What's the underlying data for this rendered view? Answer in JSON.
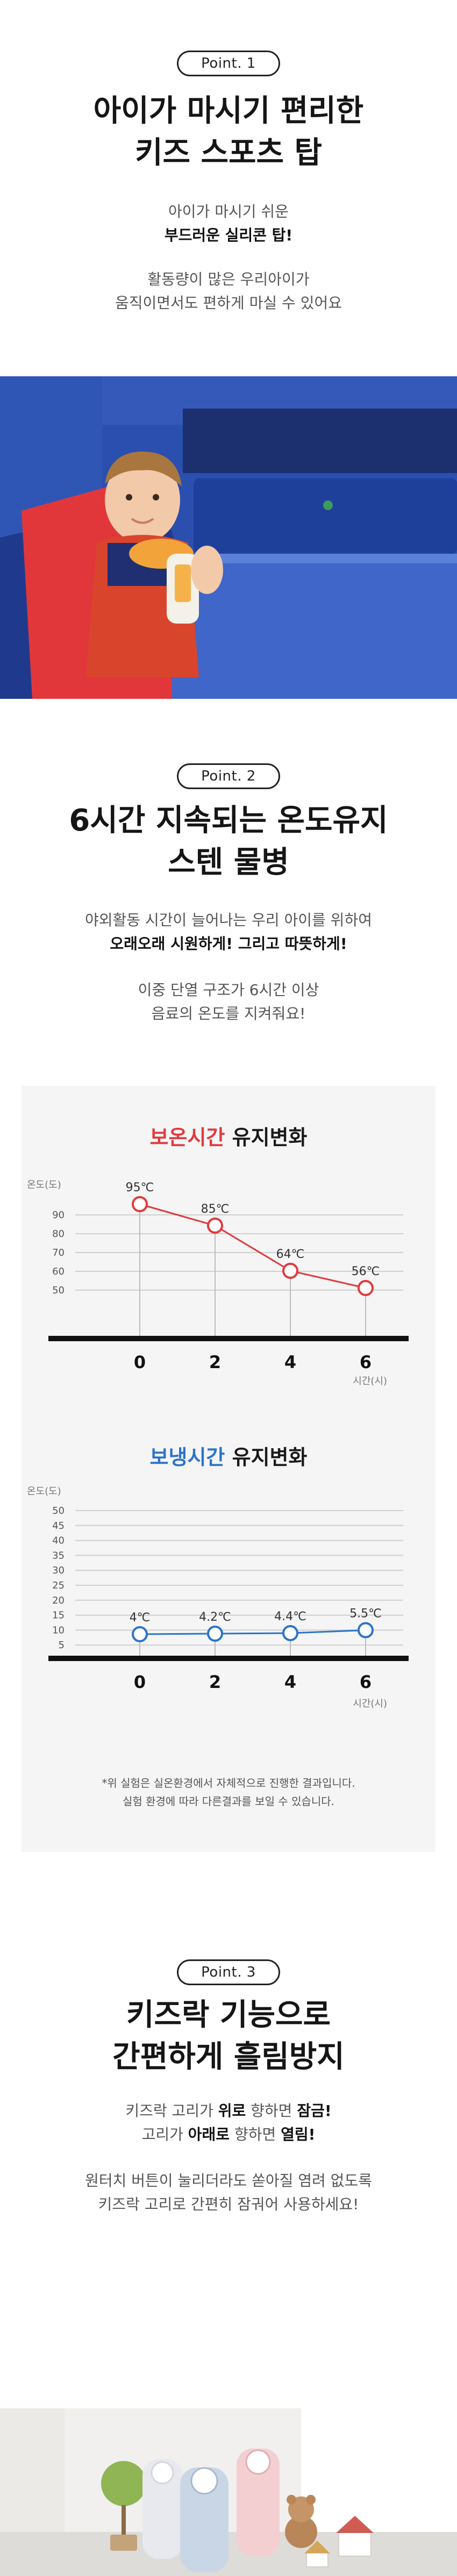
{
  "point1": {
    "badge": "Point. 1",
    "title_line1": "아이가 마시기 편리한",
    "title_line2": "키즈 스포츠 탑",
    "desc1_line1": "아이가 마시기 쉬운",
    "desc1_line2": "부드러운 실리콘 탑!",
    "desc2_line1": "활동량이 많은 우리아이가",
    "desc2_line2": "움직이면서도 편하게 마실 수 있어요"
  },
  "point2": {
    "badge": "Point. 2",
    "title_line1": "6시간 지속되는 온도유지",
    "title_line2": "스텐 물병",
    "desc1_line1": "야외활동 시간이 늘어나는 우리 아이를 위하여",
    "desc1_line2": "오래오래 시원하게! 그리고 따뜻하게!",
    "desc2_line1": "이중 단열 구조가 6시간 이상",
    "desc2_line2": "음료의 온도를 지켜줘요!",
    "note_line1": "*위 실험은 실온환경에서 자체적으로 진행한 결과입니다.",
    "note_line2": "실험 환경에 따라 다른결과를 보일 수 있습니다."
  },
  "point3": {
    "badge": "Point. 3",
    "title_line1": "키즈락 기능으로",
    "title_line2": "간편하게 흘림방지",
    "desc1_a": "키즈락 고리가 ",
    "desc1_b": "위로",
    "desc1_c": " 향하면 ",
    "desc1_d": "잠금!",
    "desc2_a": "고리가 ",
    "desc2_b": "아래로",
    "desc2_c": " 향하면 ",
    "desc2_d": "열림!",
    "desc3_line1": "원터치 버튼이 눌리더라도 쏟아질 염려 없도록",
    "desc3_line2": "키즈락 고리로 간편히 잠궈어 사용하세요!"
  },
  "colors": {
    "warm": "#e03a3e",
    "cold": "#2b74cc"
  },
  "chart_data": [
    {
      "type": "line",
      "title_colored": "보온시간",
      "title_rest": " 유지변화",
      "ylabel": "온도(도)",
      "xlabel": "시간(시)",
      "x": [
        0,
        2,
        4,
        6
      ],
      "x_ticks": [
        "0",
        "2",
        "4",
        "6"
      ],
      "y_ticks": [
        "90",
        "80",
        "70",
        "60",
        "50"
      ],
      "ylim": [
        45,
        95
      ],
      "values": [
        95,
        85,
        64,
        56
      ],
      "data_labels": [
        "95℃",
        "85℃",
        "64℃",
        "56℃"
      ],
      "color": "#e03a3e"
    },
    {
      "type": "line",
      "title_colored": "보냉시간",
      "title_rest": " 유지변화",
      "ylabel": "온도(도)",
      "xlabel": "시간(시)",
      "x": [
        0,
        2,
        4,
        6
      ],
      "x_ticks": [
        "0",
        "2",
        "4",
        "6"
      ],
      "y_ticks": [
        "50",
        "45",
        "40",
        "35",
        "30",
        "25",
        "20",
        "15",
        "10",
        "5"
      ],
      "ylim": [
        0,
        50
      ],
      "values": [
        4,
        4.2,
        4.4,
        5.5
      ],
      "data_labels": [
        "4℃",
        "4.2℃",
        "4.4℃",
        "5.5℃"
      ],
      "color": "#2b74cc"
    }
  ]
}
